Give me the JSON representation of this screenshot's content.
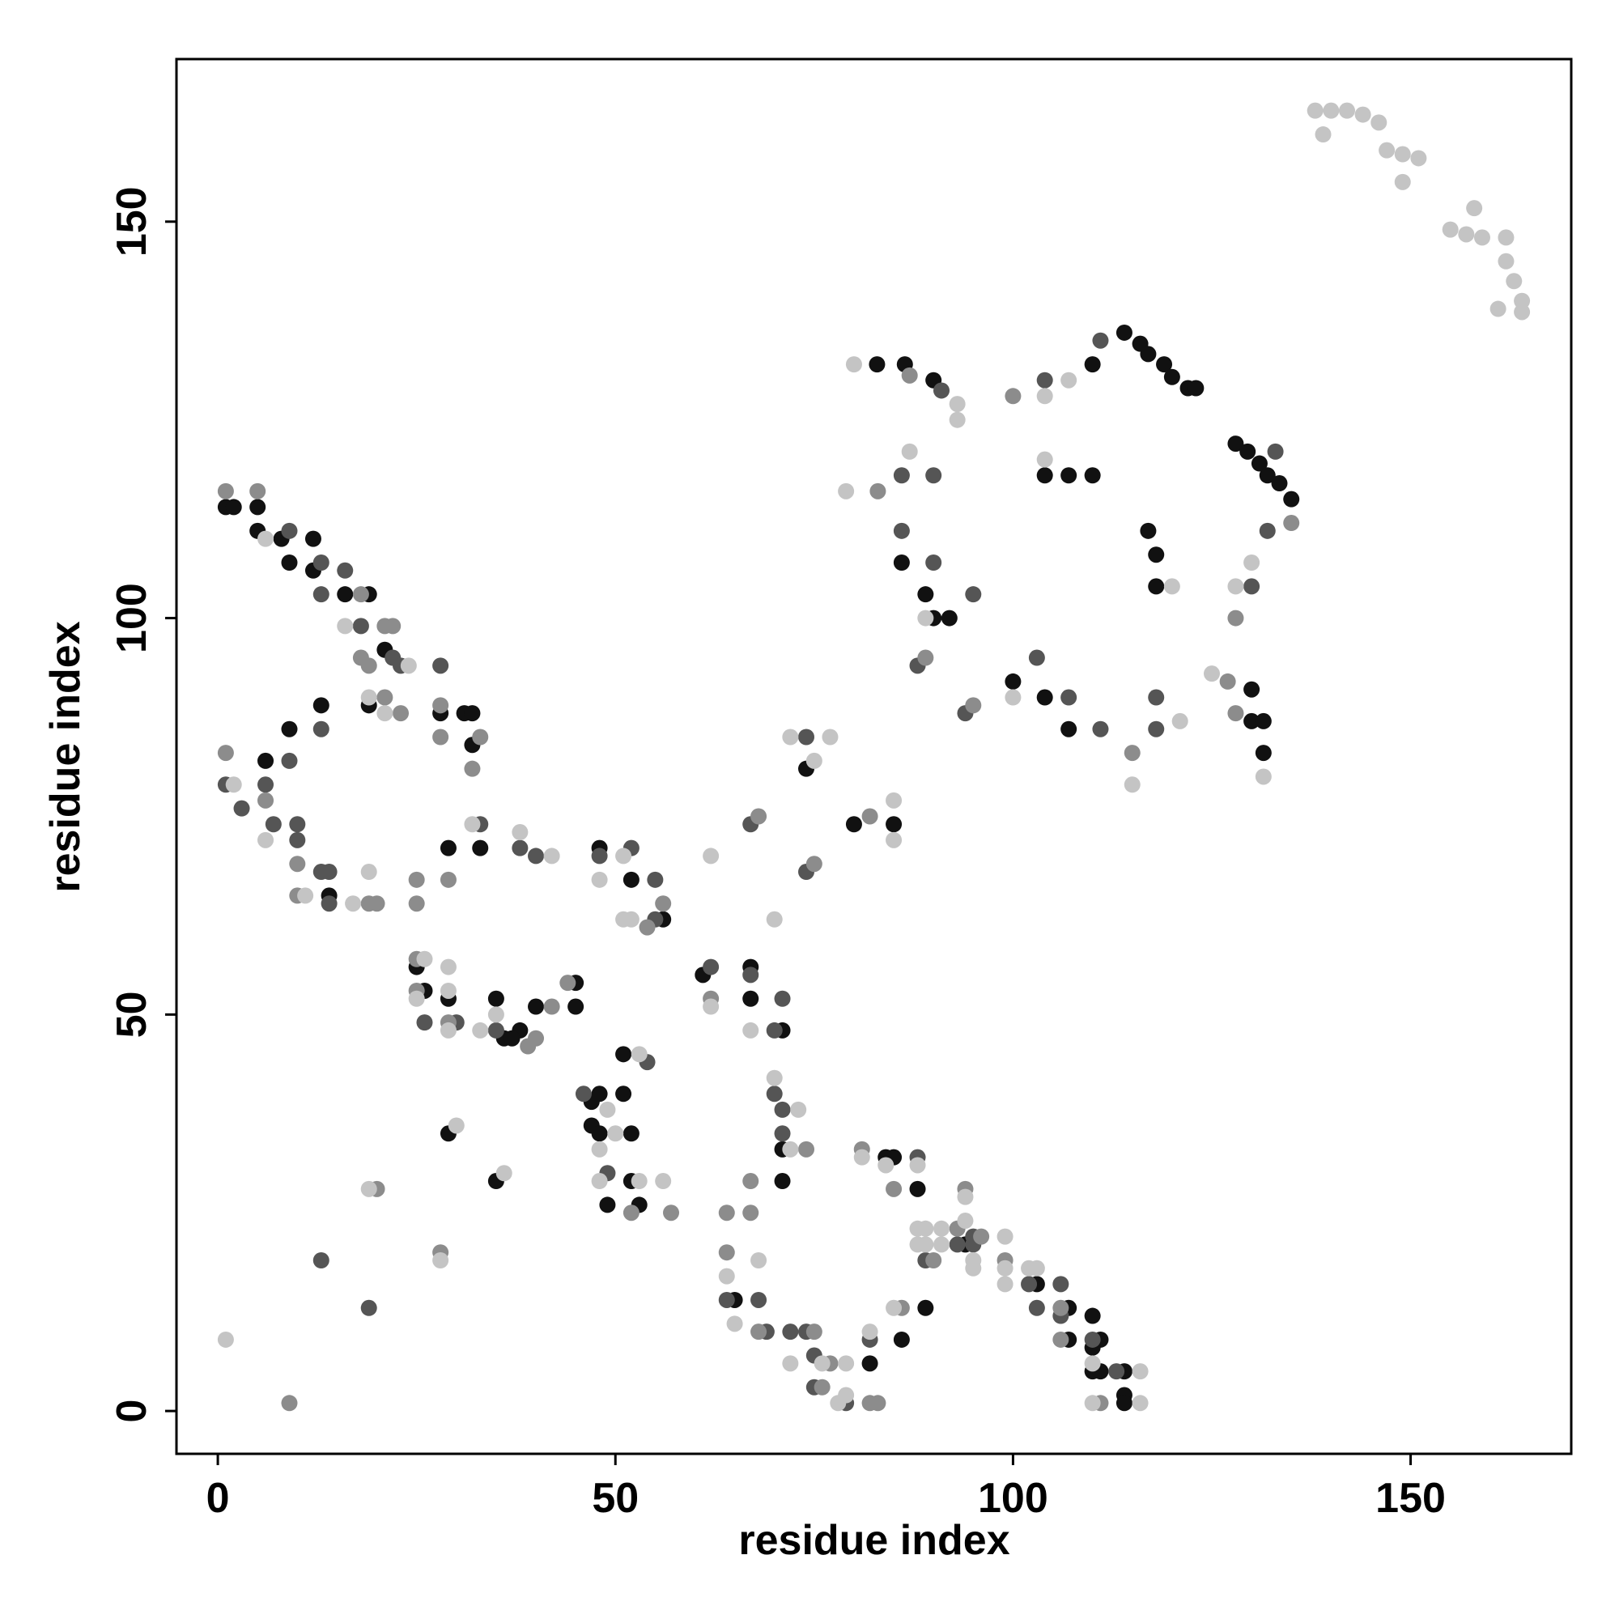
{
  "chart_data": {
    "type": "scatter",
    "xlabel": "residue index",
    "ylabel": "residue index",
    "xlim": [
      -5.2,
      170.2
    ],
    "ylim": [
      -5.4,
      170.5
    ],
    "xticks": [
      0,
      50,
      100,
      150
    ],
    "yticks": [
      0,
      50,
      100,
      150
    ],
    "grid": false,
    "series": [
      {
        "color": "#111111",
        "x": [
          114,
          116,
          117,
          119,
          120,
          122,
          123,
          110,
          128,
          129.5,
          131,
          132,
          133.5,
          135,
          82.9,
          86.4,
          90,
          104,
          107,
          110,
          86,
          89,
          90,
          92,
          117,
          118,
          118,
          130,
          130,
          131.5,
          131.5,
          100,
          104,
          107,
          74,
          80,
          85,
          1,
          2,
          5,
          5,
          8,
          9,
          12,
          12,
          16,
          19,
          21,
          19,
          28,
          31,
          32,
          32,
          6,
          14,
          9,
          13,
          29,
          33,
          48,
          52,
          56,
          25,
          26,
          29,
          35,
          36,
          38,
          40,
          45,
          45,
          37,
          47,
          48,
          47,
          48,
          51,
          51,
          52,
          49,
          52,
          53,
          29,
          35,
          61,
          67,
          67,
          71,
          71,
          71,
          65,
          82,
          86,
          89,
          84,
          85,
          88,
          94,
          103,
          107,
          110,
          107,
          111,
          110,
          110,
          111,
          114,
          114,
          114
        ],
        "values": [
          136,
          134.6,
          133.3,
          132,
          130.4,
          129,
          129,
          132,
          122,
          121,
          119.5,
          118,
          117,
          115,
          132,
          132,
          130,
          118,
          118,
          118,
          107,
          103,
          100,
          100,
          111,
          108,
          104,
          91,
          87,
          87,
          83,
          92,
          90,
          86,
          81,
          74,
          74,
          114,
          114,
          114,
          111,
          110,
          107,
          110,
          106,
          103,
          103,
          96,
          89,
          88,
          88,
          88,
          84,
          82,
          65,
          86,
          89,
          71,
          71,
          71,
          67,
          62,
          56,
          53,
          52,
          52,
          47,
          48,
          51,
          54,
          51,
          47,
          39,
          40,
          36,
          35,
          40,
          45,
          35,
          26,
          29,
          26,
          35,
          29,
          55,
          56,
          52,
          48,
          33,
          29,
          14,
          6,
          9,
          13,
          32,
          32,
          28,
          21,
          16,
          13,
          12,
          9,
          9,
          8,
          5,
          5,
          5,
          2,
          1
        ]
      },
      {
        "color": "#555555",
        "x": [
          111,
          133,
          132,
          91,
          104,
          86,
          90,
          86,
          90,
          95,
          88,
          118,
          118,
          103,
          107,
          111,
          94,
          130,
          74,
          67,
          74,
          9,
          13,
          16,
          13,
          18,
          22,
          23,
          28,
          1,
          3,
          6,
          7,
          10,
          10,
          13,
          14,
          14,
          9,
          13,
          33,
          38,
          40,
          48,
          52,
          55,
          55,
          26,
          30,
          35,
          46,
          54,
          49,
          13,
          19,
          62,
          67,
          71,
          70,
          70,
          71,
          71,
          64,
          68,
          69,
          72,
          74,
          75,
          75,
          79,
          82,
          88,
          95,
          93,
          95,
          89,
          102,
          106,
          103,
          106,
          110,
          113
        ],
        "values": [
          135,
          121,
          111,
          128.7,
          130,
          118,
          118,
          111,
          107,
          103,
          94,
          90,
          86,
          95,
          90,
          86,
          88,
          104,
          85,
          74,
          68,
          111,
          107,
          106,
          103,
          99,
          95,
          94,
          94,
          79,
          76,
          79,
          74,
          74,
          72,
          68,
          68,
          64,
          82,
          86,
          74,
          71,
          70,
          70,
          71,
          67,
          62,
          49,
          49,
          48,
          40,
          44,
          30,
          19,
          13,
          56,
          55,
          52,
          48,
          40,
          38,
          35,
          14,
          14,
          10,
          10,
          10,
          7,
          3,
          1,
          9,
          32,
          22,
          21,
          21,
          19,
          16,
          16,
          13,
          12,
          9,
          5
        ]
      },
      {
        "color": "#8c8c8c",
        "x": [
          87,
          100,
          83,
          135,
          128,
          89,
          127,
          128,
          115,
          95,
          68,
          75,
          82,
          1,
          5,
          18,
          21,
          22,
          18,
          19,
          21,
          23,
          28,
          28,
          33,
          32,
          1,
          6,
          10,
          10,
          19,
          20,
          25,
          25,
          29,
          56,
          54,
          25,
          25,
          29,
          40,
          42,
          44,
          39,
          52,
          57,
          20,
          9,
          28,
          62,
          67,
          64,
          64,
          68,
          75,
          76,
          77,
          82,
          83,
          86,
          81,
          85,
          94,
          93,
          96,
          90,
          99,
          106,
          106,
          111,
          67,
          74
        ],
        "values": [
          130.6,
          128,
          116,
          112,
          100,
          95,
          92,
          88,
          83,
          89,
          75,
          69,
          75,
          116,
          116,
          103,
          99,
          99,
          95,
          94,
          90,
          88,
          89,
          85,
          85,
          81,
          83,
          77,
          69,
          65,
          64,
          64,
          67,
          64,
          67,
          64,
          61,
          57,
          53,
          49,
          47,
          51,
          54,
          46,
          25,
          25,
          28,
          1,
          20,
          52,
          25,
          25,
          20,
          10,
          10,
          3,
          6,
          1,
          1,
          13,
          33,
          28,
          28,
          23,
          22,
          19,
          19,
          13,
          9,
          1,
          29,
          33
        ]
      },
      {
        "color": "#c4c4c4",
        "x": [
          138,
          140,
          142,
          144,
          146,
          139,
          147,
          149,
          151,
          149,
          155,
          158,
          157,
          159,
          162,
          162,
          163,
          164,
          161,
          164,
          80,
          93,
          93,
          107,
          104,
          79,
          87,
          104,
          89,
          120,
          128,
          130,
          125,
          131.5,
          121,
          115,
          100,
          72,
          77,
          75,
          62,
          70,
          85,
          85,
          6,
          16,
          24,
          19,
          21,
          2,
          6,
          11,
          17,
          19,
          32,
          38,
          42,
          48,
          51,
          51,
          52,
          26,
          25,
          29,
          29,
          29,
          33,
          35,
          49,
          48,
          50,
          53,
          53,
          56,
          48,
          30,
          36,
          19,
          1,
          28,
          62,
          67,
          70,
          73,
          72,
          64,
          68,
          65,
          72,
          76,
          79,
          78,
          79,
          82,
          85,
          81,
          84,
          88,
          94,
          88,
          89,
          91,
          94,
          88,
          89,
          91,
          95,
          95,
          99,
          99,
          99,
          102,
          103,
          110,
          116,
          110,
          116
        ],
        "values": [
          164,
          164,
          164,
          163.5,
          162.5,
          161,
          159,
          158.5,
          158,
          155,
          149,
          151.7,
          148.4,
          148,
          148,
          145,
          142.5,
          140,
          139,
          138.6,
          132,
          127,
          125,
          130,
          128,
          116,
          121,
          120,
          100,
          104,
          104,
          107,
          93,
          80,
          87,
          79,
          90,
          85,
          85,
          82,
          70,
          62,
          77,
          72,
          110,
          99,
          94,
          90,
          88,
          79,
          72,
          65,
          64,
          68,
          74,
          73,
          70,
          67,
          70,
          62,
          62,
          57,
          52,
          56,
          53,
          48,
          48,
          50,
          38,
          33,
          35,
          45,
          29,
          29,
          29,
          36,
          30,
          28,
          9,
          19,
          51,
          48,
          42,
          38,
          33,
          17,
          19,
          11,
          6,
          6,
          6,
          1,
          2,
          10,
          13,
          32,
          31,
          31,
          27,
          23,
          23,
          23,
          24,
          21,
          21,
          21,
          19,
          18,
          22,
          18,
          16,
          18,
          18,
          6,
          5,
          1,
          1
        ]
      }
    ]
  }
}
